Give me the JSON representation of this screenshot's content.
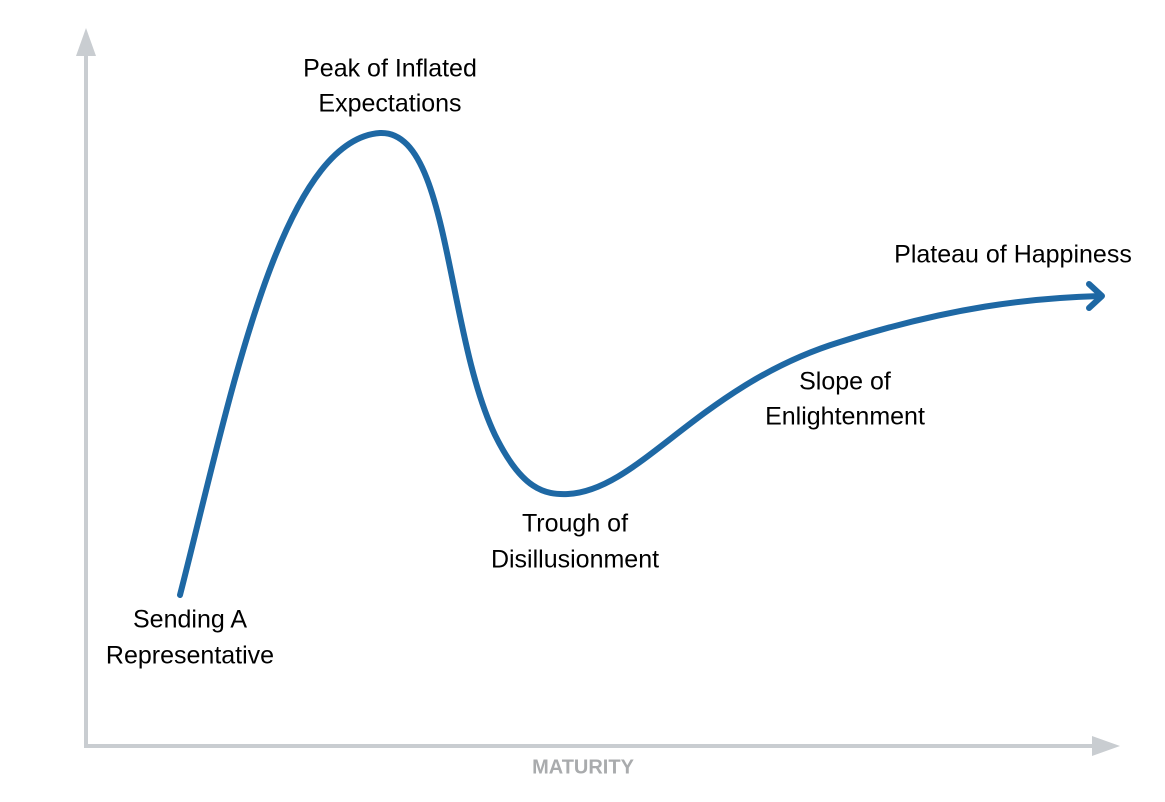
{
  "axis": {
    "x_label": "MATURITY"
  },
  "phases": [
    {
      "lines": [
        "Sending A",
        "Representative"
      ]
    },
    {
      "lines": [
        "Peak of Inflated",
        "Expectations"
      ]
    },
    {
      "lines": [
        "Trough of",
        "Disillusionment"
      ]
    },
    {
      "lines": [
        "Slope of",
        "Enlightenment"
      ]
    },
    {
      "lines": [
        "Plateau of Happiness"
      ]
    }
  ]
}
